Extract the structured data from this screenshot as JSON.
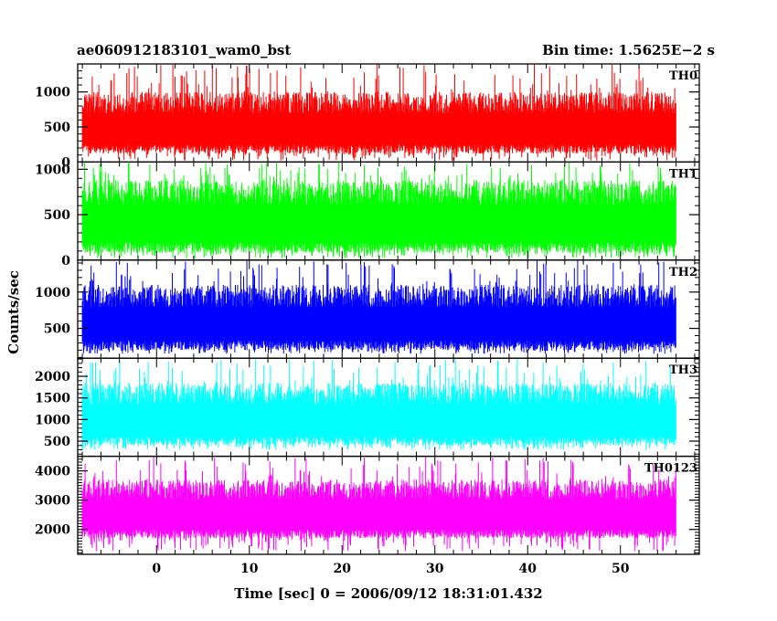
{
  "chart_data": {
    "type": "line",
    "title_left": "ae060912183101_wam0_bst",
    "title_right": "Bin time: 1.5625E−2 s",
    "xlabel": "Time [sec] 0 = 2006/09/12 18:31:01.432",
    "ylabel": "Counts/sec",
    "xlim": [
      -8.5,
      58.5
    ],
    "data_x_range": [
      -8,
      56
    ],
    "x_ticks": [
      0,
      10,
      20,
      30,
      40,
      50
    ],
    "x_tick_labels": [
      "0",
      "10",
      "20",
      "30",
      "40",
      "50"
    ],
    "panels": [
      {
        "name": "TH0",
        "color": "#ff0000",
        "ylim": [
          0,
          1400
        ],
        "yticks": [
          0,
          500,
          1000
        ],
        "ytick_labels": [
          "0",
          "500",
          "1000"
        ],
        "baseline": 20,
        "typical_min": 120,
        "typical_max": 1000,
        "spike_max": 1400
      },
      {
        "name": "TH1",
        "color": "#00ff00",
        "ylim": [
          0,
          1080
        ],
        "yticks": [
          0,
          500,
          1000
        ],
        "ytick_labels": [
          "0",
          "500",
          "1000"
        ],
        "baseline": 20,
        "typical_min": 80,
        "typical_max": 880,
        "spike_max": 1080
      },
      {
        "name": "TH2",
        "color": "#0000ff",
        "ylim": [
          90,
          1440
        ],
        "yticks": [
          500,
          1000
        ],
        "ytick_labels": [
          "500",
          "1000"
        ],
        "baseline": 150,
        "typical_min": 200,
        "typical_max": 1100,
        "spike_max": 1440
      },
      {
        "name": "TH3",
        "color": "#00ffff",
        "ylim": [
          150,
          2420
        ],
        "yticks": [
          500,
          1000,
          1500,
          2000
        ],
        "ytick_labels": [
          "500",
          "1000",
          "1500",
          "2000"
        ],
        "baseline": 290,
        "typical_min": 400,
        "typical_max": 1850,
        "spike_max": 2420
      },
      {
        "name": "TH0123",
        "color": "#ff00ff",
        "ylim": [
          1150,
          4500
        ],
        "yticks": [
          2000,
          3000,
          4000
        ],
        "ytick_labels": [
          "2000",
          "3000",
          "4000"
        ],
        "baseline": 1250,
        "typical_min": 1700,
        "typical_max": 3700,
        "spike_max": 4500
      }
    ]
  }
}
